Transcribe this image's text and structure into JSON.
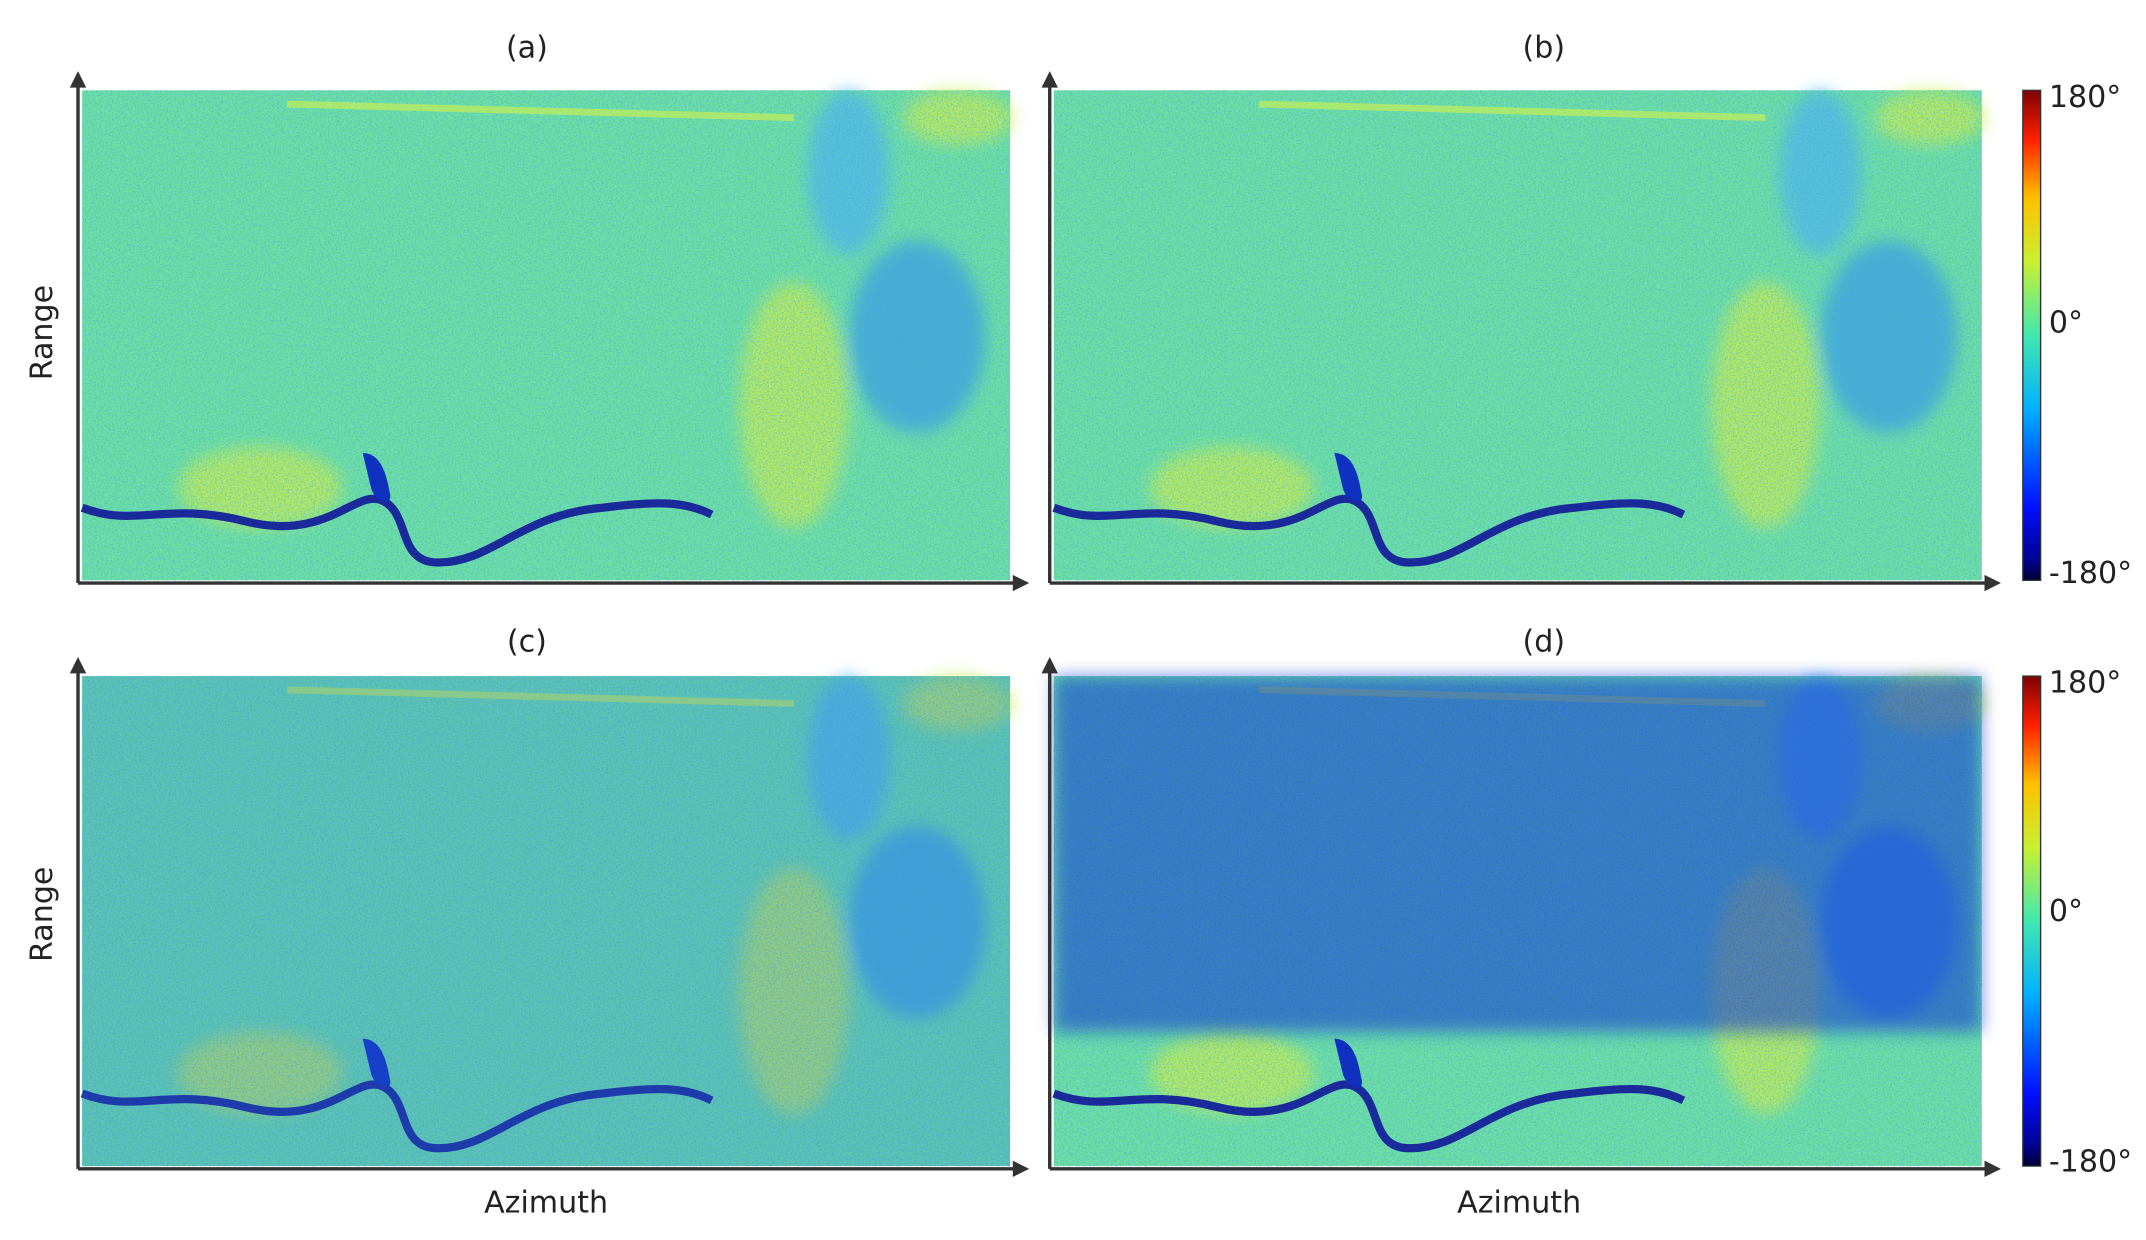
{
  "rows": [
    {
      "y_label": "Range",
      "panels": [
        {
          "label": "(a)"
        },
        {
          "label": "(b)"
        }
      ],
      "colorbar": {
        "ticks": [
          "180°",
          "0°",
          "-180°"
        ]
      }
    },
    {
      "y_label": "Range",
      "panels": [
        {
          "label": "(c)"
        },
        {
          "label": "(d)"
        }
      ],
      "colorbar": {
        "ticks": [
          "180°",
          "0°",
          "-180°"
        ]
      },
      "x_labels": [
        "Azimuth",
        "Azimuth"
      ]
    }
  ]
}
